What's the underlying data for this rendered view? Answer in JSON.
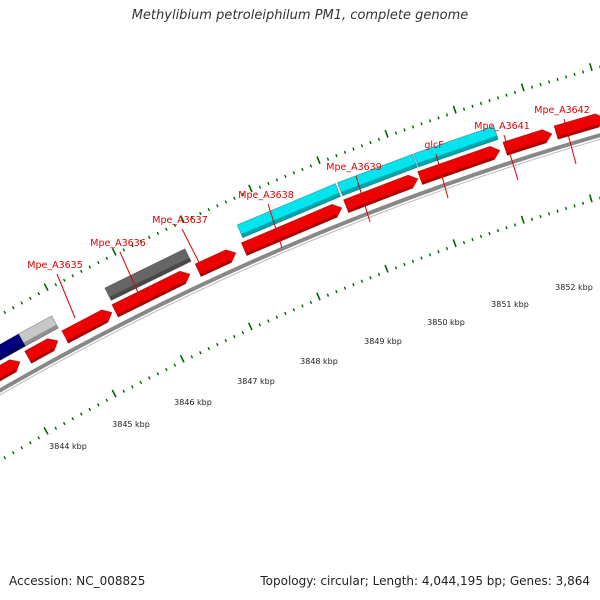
{
  "title": "Methylibium petroleiphilum PM1, complete genome",
  "accession": "Accession: NC_008825",
  "summary": "Topology: circular; Length: 4,044,195 bp; Genes: 3,864",
  "colors": {
    "forward_cds": "#ee0000",
    "cyan_feature": "#00e5ee",
    "gray_feature": "#666666",
    "light_gray_feature": "#c8c8c8",
    "navy_feature": "#000080",
    "backbone": "#888888",
    "tick": "#006600",
    "gene_label": "#dd0000"
  },
  "gene_labels": [
    "Mpe_A3635",
    "Mpe_A3636",
    "Mpe_A3637",
    "Mpe_A3638",
    "Mpe_A3639",
    "glcF",
    "Mpe_A3641",
    "Mpe_A3642"
  ],
  "kbp_labels": [
    "3844 kbp",
    "3845 kbp",
    "3846 kbp",
    "3847 kbp",
    "3848 kbp",
    "3849 kbp",
    "3850 kbp",
    "3851 kbp",
    "3852 kbp"
  ]
}
